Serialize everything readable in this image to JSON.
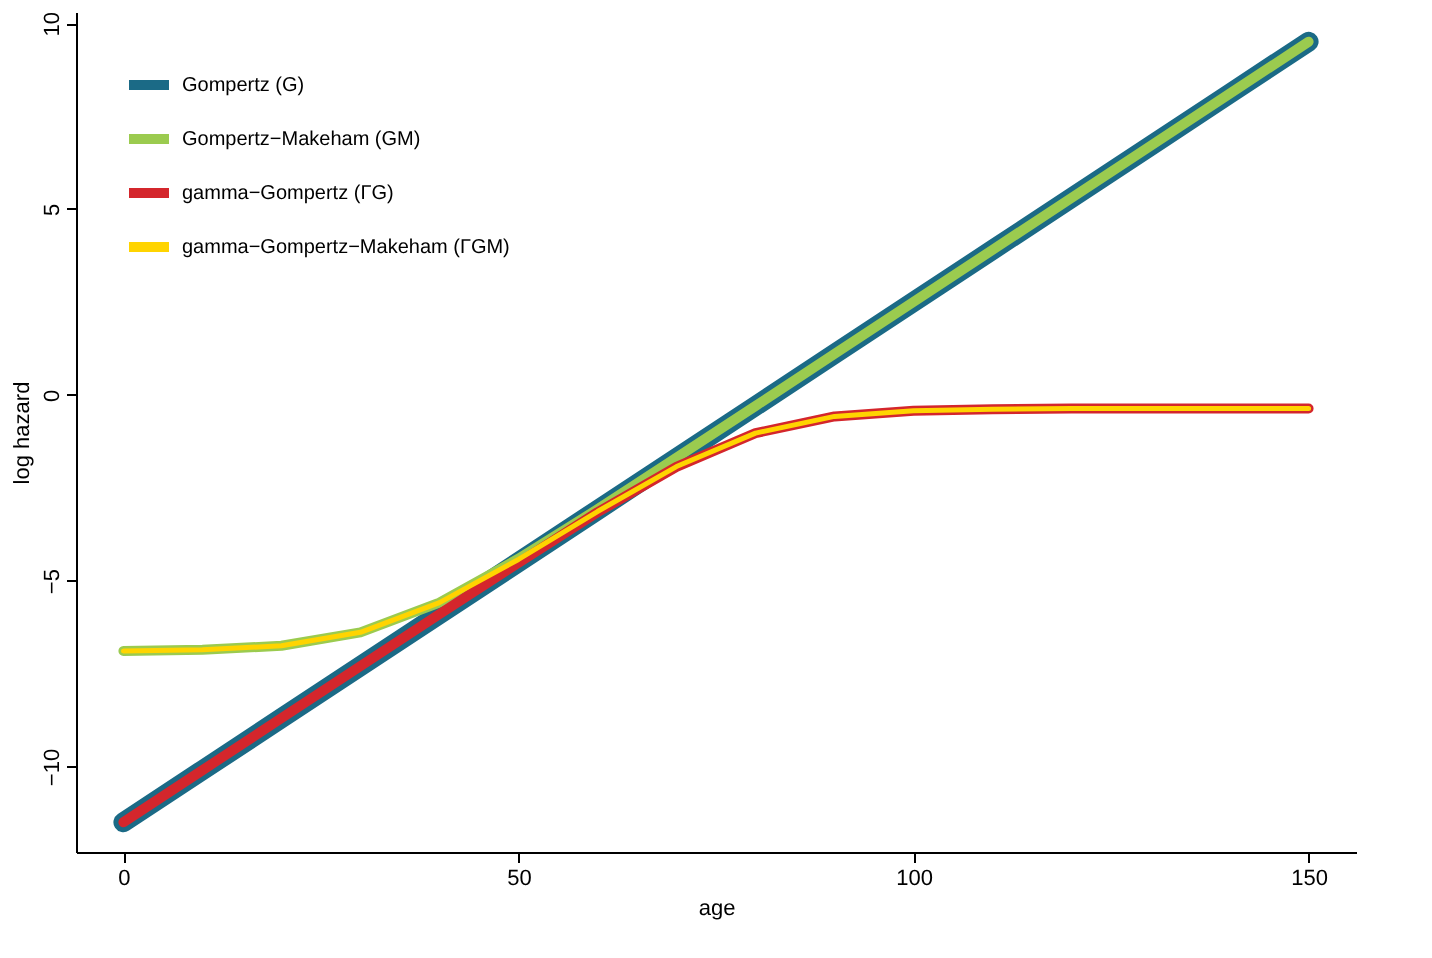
{
  "chart_data": {
    "type": "line",
    "xlabel": "age",
    "ylabel": "log hazard",
    "x": [
      0,
      10,
      20,
      30,
      40,
      50,
      60,
      70,
      80,
      90,
      100,
      110,
      120,
      130,
      140,
      150
    ],
    "series": [
      {
        "name": "Gompertz (G)",
        "color": "#1b6a86",
        "values": [
          -11.5,
          -10.1,
          -8.7,
          -7.3,
          -5.9,
          -4.5,
          -3.1,
          -1.7,
          -0.3,
          1.1,
          2.5,
          3.9,
          5.3,
          6.7,
          8.1,
          9.5
        ]
      },
      {
        "name": "Gompertz−Makeham (GM)",
        "color": "#9bcb4f",
        "values": [
          -6.89,
          -6.86,
          -6.75,
          -6.39,
          -5.59,
          -4.41,
          -3.08,
          -1.69,
          -0.3,
          1.1,
          2.5,
          3.9,
          5.3,
          6.7,
          8.1,
          9.5
        ]
      },
      {
        "name": "gamma−Gompertz (ΓG)",
        "color": "#d4262c",
        "values": [
          -11.5,
          -10.1,
          -8.7,
          -7.3,
          -5.9,
          -4.52,
          -3.16,
          -1.94,
          -1.03,
          -0.58,
          -0.43,
          -0.39,
          -0.37,
          -0.37,
          -0.37,
          -0.37
        ]
      },
      {
        "name": "gamma−Gompertz−Makeham (ΓGM)",
        "color": "#ffd400",
        "values": [
          -6.89,
          -6.86,
          -6.75,
          -6.39,
          -5.59,
          -4.43,
          -3.14,
          -1.93,
          -1.03,
          -0.58,
          -0.43,
          -0.39,
          -0.37,
          -0.37,
          -0.37,
          -0.37
        ]
      }
    ],
    "xlim": [
      -6,
      156
    ],
    "xticks": [
      0,
      50,
      100,
      150
    ],
    "ylim": [
      -12.3,
      10.3
    ],
    "yticks": [
      -10,
      -5,
      0,
      5,
      10
    ],
    "grid": false,
    "legend": "top left",
    "marker": "none",
    "line_style": "solid"
  }
}
